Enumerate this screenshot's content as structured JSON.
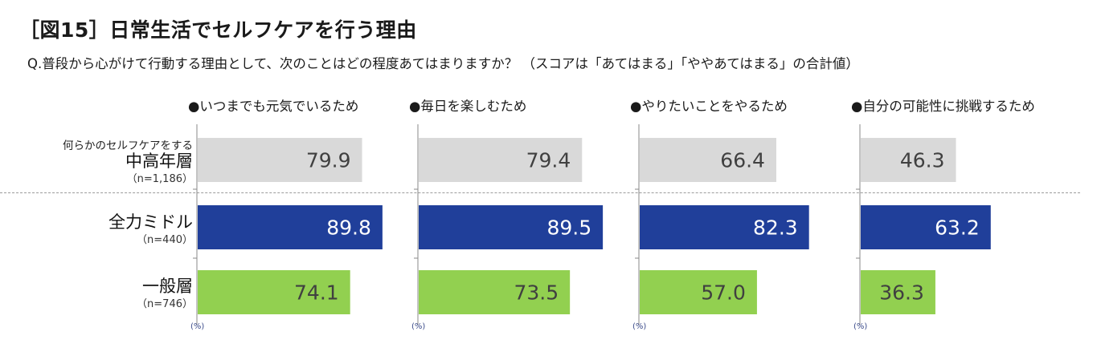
{
  "title": "［図15］日常生活でセルフケアを行う理由",
  "subtitle": "Q.普段から心がけて行動する理由として、次のことはどの程度あてはまりますか？ （スコアは「あてはまる」「ややあてはまる」の合計値）",
  "unit_label": "(%)",
  "groups": [
    {
      "top": "何らかのセルフケアをする",
      "main": "中高年層",
      "n": "（n=1,186）"
    },
    {
      "top": "",
      "main": "全力ミドル",
      "n": "（n=440）"
    },
    {
      "top": "",
      "main": "一般層",
      "n": "（n=746）"
    }
  ],
  "colors": {
    "group0": "#d9d9d9",
    "group1": "#203f9a",
    "group2": "#92d050",
    "label_dark": "#404040",
    "label_light": "#ffffff"
  },
  "chart_data": {
    "type": "bar",
    "orientation": "horizontal",
    "xlim": [
      0,
      100
    ],
    "panels": [
      {
        "title": "●いつまでも元気でいるため",
        "values": [
          "79.9",
          "89.8",
          "74.1"
        ]
      },
      {
        "title": "●毎日を楽しむため",
        "values": [
          "79.4",
          "89.5",
          "73.5"
        ]
      },
      {
        "title": "●やりたいことをやるため",
        "values": [
          "66.4",
          "82.3",
          "57.0"
        ]
      },
      {
        "title": "●自分の可能性に挑戦するため",
        "values": [
          "46.3",
          "63.2",
          "36.3"
        ]
      }
    ]
  }
}
